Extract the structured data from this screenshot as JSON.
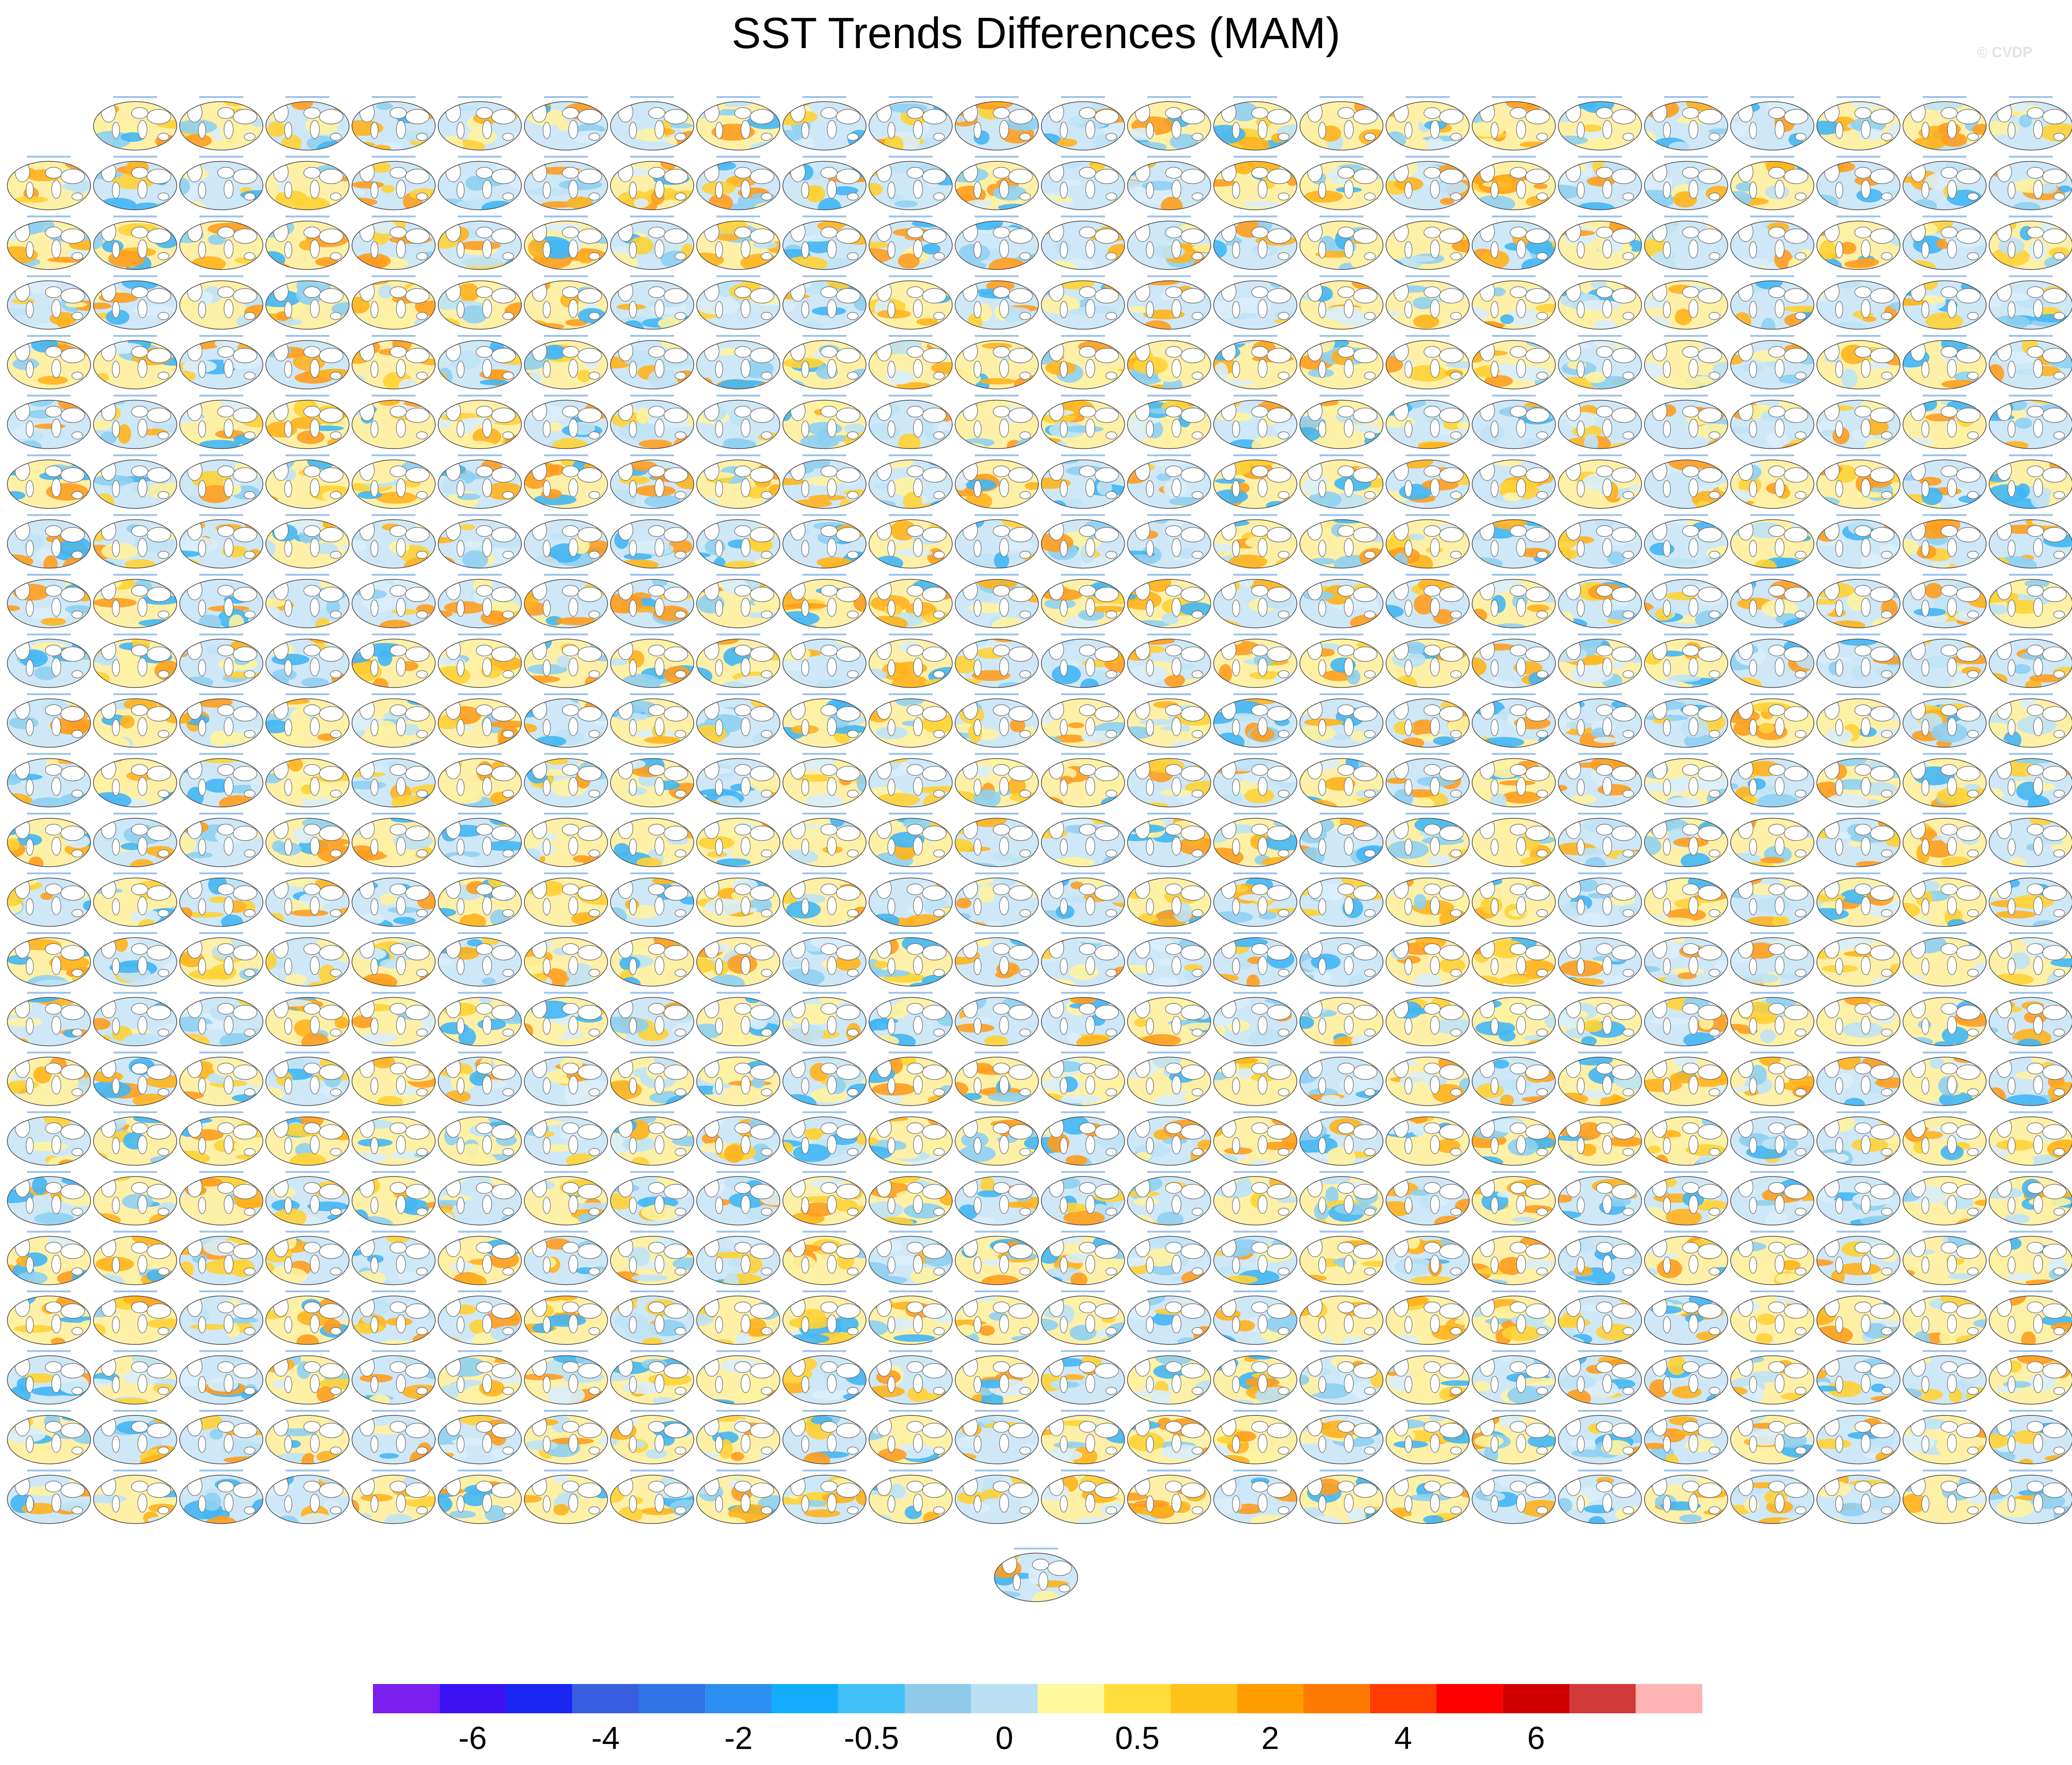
{
  "title": "SST Trends Differences (MAM)",
  "credit": "© CVDP",
  "chart_data": {
    "type": "heatmap",
    "description_kind": "panel-grid",
    "rows": [
      23,
      24,
      24,
      24,
      24,
      24,
      24,
      24,
      24,
      24,
      24,
      24,
      24,
      24,
      24,
      24,
      24,
      24,
      24,
      24,
      24,
      24,
      24,
      24,
      1
    ],
    "colorbar": {
      "colors": [
        "#7a1fef",
        "#3d12f2",
        "#1a26f2",
        "#3a5ee0",
        "#2f74e6",
        "#2b8ff2",
        "#14acfc",
        "#41c0f8",
        "#8fcaea",
        "#badff3",
        "#fff99d",
        "#ffde3c",
        "#ffc21a",
        "#ff9d00",
        "#ff7a00",
        "#ff3c00",
        "#ff0000",
        "#d10000",
        "#d23a3a",
        "#ffb3b3"
      ],
      "tick_labels": [
        "-6",
        "-4",
        "-2",
        "-0.5",
        "0",
        "0.5",
        "2",
        "4",
        "6"
      ],
      "tick_boundaries": [
        2,
        4,
        6,
        8,
        10,
        12,
        14,
        16,
        18
      ]
    }
  }
}
